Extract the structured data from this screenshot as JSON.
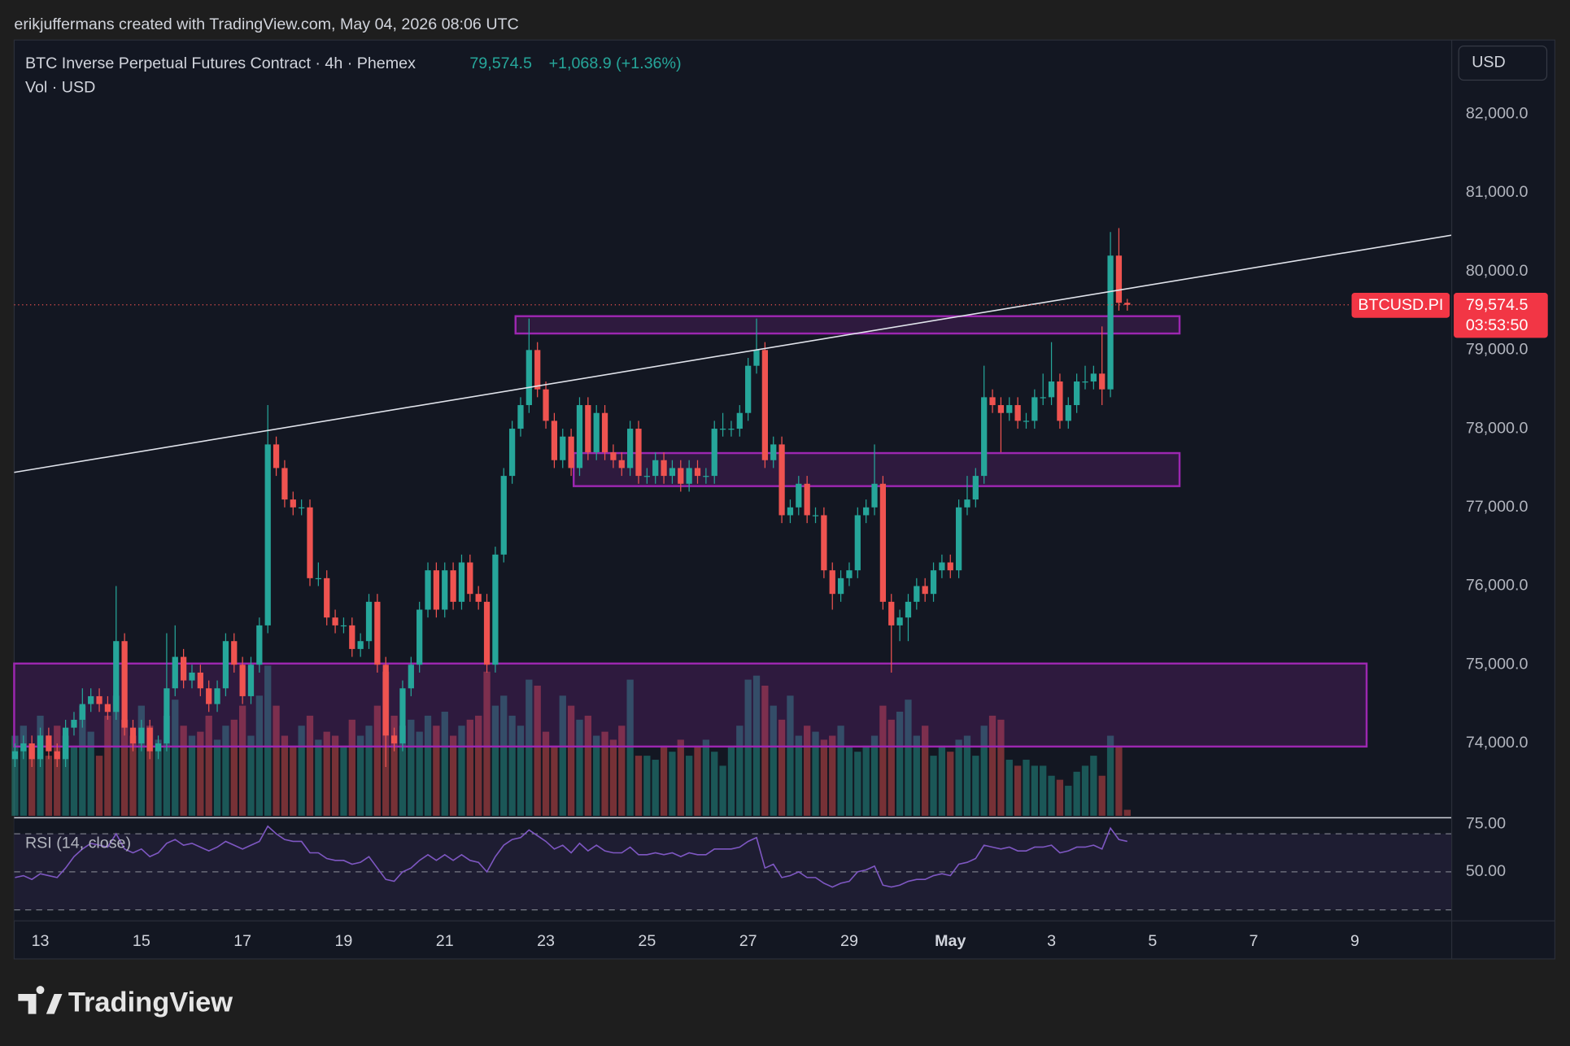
{
  "chart_data": {
    "type": "candlestick",
    "credit": "erikjuffermans created with TradingView.com, May 04, 2026 08:06 UTC",
    "title": "BTC Inverse Perpetual Futures Contract · 4h · Phemex",
    "last_price": {
      "value": 79574.5,
      "label": "79,574.5"
    },
    "change": "+1,068.9 (+1.36%)",
    "volume_label": "Vol · USD",
    "currency": "USD",
    "symbol_tag": "BTCUSD.PI",
    "countdown": "03:53:50",
    "rsi_label": "RSI (14, close)",
    "brand": "TradingView",
    "up_color": "#26a69a",
    "down_color": "#ef5350",
    "grid": true,
    "xlim": [
      -0.1,
      170.5
    ],
    "xticks": [
      {
        "value": 3,
        "label": "13"
      },
      {
        "value": 15,
        "label": "15"
      },
      {
        "value": 27,
        "label": "17"
      },
      {
        "value": 39,
        "label": "19"
      },
      {
        "value": 51,
        "label": "21"
      },
      {
        "value": 63,
        "label": "23"
      },
      {
        "value": 75,
        "label": "25"
      },
      {
        "value": 87,
        "label": "27"
      },
      {
        "value": 99,
        "label": "29"
      },
      {
        "value": 111,
        "label": "May"
      },
      {
        "value": 123,
        "label": "3"
      },
      {
        "value": 135,
        "label": "5"
      },
      {
        "value": 147,
        "label": "7"
      },
      {
        "value": 159,
        "label": "9"
      }
    ],
    "ylim": [
      73080,
      82940
    ],
    "yticks": [
      {
        "value": 74000,
        "label": "74,000.0"
      },
      {
        "value": 75000,
        "label": "75,000.0"
      },
      {
        "value": 76000,
        "label": "76,000.0"
      },
      {
        "value": 77000,
        "label": "77,000.0"
      },
      {
        "value": 78000,
        "label": "78,000.0"
      },
      {
        "value": 79000,
        "label": "79,000.0"
      },
      {
        "value": 80000,
        "label": "80,000.0"
      },
      {
        "value": 81000,
        "label": "81,000.0"
      },
      {
        "value": 82000,
        "label": "82,000.0"
      }
    ],
    "ohlc": [
      [
        73800,
        74000,
        73700,
        73900
      ],
      [
        73900,
        74100,
        73800,
        74000
      ],
      [
        74000,
        74100,
        73700,
        73800
      ],
      [
        73800,
        74200,
        73700,
        74100
      ],
      [
        74100,
        74200,
        73800,
        73900
      ],
      [
        73900,
        74000,
        73700,
        73800
      ],
      [
        73800,
        74300,
        73700,
        74200
      ],
      [
        74200,
        74400,
        74100,
        74300
      ],
      [
        74300,
        74700,
        74200,
        74500
      ],
      [
        74500,
        74700,
        74400,
        74600
      ],
      [
        74600,
        74700,
        74400,
        74500
      ],
      [
        74500,
        74600,
        74300,
        74400
      ],
      [
        74400,
        76000,
        74300,
        75300
      ],
      [
        75300,
        75400,
        74100,
        74200
      ],
      [
        74200,
        74300,
        73900,
        74000
      ],
      [
        74000,
        74300,
        73900,
        74200
      ],
      [
        74200,
        74300,
        73800,
        73900
      ],
      [
        73900,
        74100,
        73800,
        74000
      ],
      [
        74000,
        75400,
        73900,
        74700
      ],
      [
        74700,
        75500,
        74600,
        75100
      ],
      [
        75100,
        75200,
        74700,
        74800
      ],
      [
        74800,
        75000,
        74700,
        74900
      ],
      [
        74900,
        75000,
        74600,
        74700
      ],
      [
        74700,
        74800,
        74400,
        74500
      ],
      [
        74500,
        74800,
        74400,
        74700
      ],
      [
        74700,
        75400,
        74600,
        75300
      ],
      [
        75300,
        75400,
        74900,
        75000
      ],
      [
        75000,
        75100,
        74500,
        74600
      ],
      [
        74600,
        75100,
        74500,
        75000
      ],
      [
        75000,
        75600,
        74900,
        75500
      ],
      [
        75500,
        78300,
        75400,
        77800
      ],
      [
        77800,
        77900,
        77400,
        77500
      ],
      [
        77500,
        77600,
        77000,
        77100
      ],
      [
        77100,
        77200,
        76900,
        77000
      ],
      [
        77000,
        77100,
        76900,
        77000
      ],
      [
        77000,
        77100,
        76000,
        76100
      ],
      [
        76100,
        76300,
        76000,
        76100
      ],
      [
        76100,
        76200,
        75500,
        75600
      ],
      [
        75600,
        75700,
        75400,
        75500
      ],
      [
        75500,
        75600,
        75400,
        75500
      ],
      [
        75500,
        75600,
        75100,
        75200
      ],
      [
        75200,
        75400,
        75100,
        75300
      ],
      [
        75300,
        75900,
        75200,
        75800
      ],
      [
        75800,
        75900,
        74900,
        75000
      ],
      [
        75000,
        75100,
        73700,
        74100
      ],
      [
        74100,
        74200,
        73900,
        74000
      ],
      [
        74000,
        74800,
        73900,
        74700
      ],
      [
        74700,
        75100,
        74600,
        75000
      ],
      [
        75000,
        75800,
        74900,
        75700
      ],
      [
        75700,
        76300,
        75600,
        76200
      ],
      [
        76200,
        76300,
        75600,
        75700
      ],
      [
        75700,
        76300,
        75600,
        76200
      ],
      [
        76200,
        76300,
        75700,
        75800
      ],
      [
        75800,
        76400,
        75700,
        76300
      ],
      [
        76300,
        76400,
        75800,
        75900
      ],
      [
        75900,
        76000,
        75700,
        75800
      ],
      [
        75800,
        75900,
        74900,
        75000
      ],
      [
        75000,
        76500,
        74900,
        76400
      ],
      [
        76400,
        77500,
        76300,
        77400
      ],
      [
        77400,
        78100,
        77300,
        78000
      ],
      [
        78000,
        78400,
        77900,
        78300
      ],
      [
        78300,
        79400,
        78200,
        79000
      ],
      [
        79000,
        79100,
        78400,
        78500
      ],
      [
        78500,
        78600,
        78000,
        78100
      ],
      [
        78100,
        78200,
        77500,
        77600
      ],
      [
        77600,
        78000,
        77500,
        77900
      ],
      [
        77900,
        78000,
        77400,
        77500
      ],
      [
        77500,
        78400,
        77400,
        78300
      ],
      [
        78300,
        78400,
        77600,
        77700
      ],
      [
        77700,
        78300,
        77600,
        78200
      ],
      [
        78200,
        78300,
        77600,
        77700
      ],
      [
        77700,
        77800,
        77500,
        77600
      ],
      [
        77600,
        77700,
        77400,
        77500
      ],
      [
        77500,
        78100,
        77400,
        78000
      ],
      [
        78000,
        78100,
        77300,
        77400
      ],
      [
        77400,
        77500,
        77300,
        77400
      ],
      [
        77400,
        77700,
        77300,
        77600
      ],
      [
        77600,
        77700,
        77300,
        77400
      ],
      [
        77400,
        77600,
        77300,
        77500
      ],
      [
        77500,
        77600,
        77200,
        77300
      ],
      [
        77300,
        77600,
        77200,
        77500
      ],
      [
        77500,
        77600,
        77300,
        77400
      ],
      [
        77400,
        77500,
        77300,
        77400
      ],
      [
        77400,
        78100,
        77300,
        78000
      ],
      [
        78000,
        78200,
        77900,
        78000
      ],
      [
        78000,
        78100,
        77900,
        78000
      ],
      [
        78000,
        78300,
        77900,
        78200
      ],
      [
        78200,
        78900,
        78100,
        78800
      ],
      [
        78800,
        79400,
        78700,
        79000
      ],
      [
        79000,
        79100,
        77500,
        77600
      ],
      [
        77600,
        77900,
        77500,
        77800
      ],
      [
        77800,
        77900,
        76800,
        76900
      ],
      [
        76900,
        77100,
        76800,
        77000
      ],
      [
        77000,
        77400,
        76900,
        77300
      ],
      [
        77300,
        77400,
        76800,
        76900
      ],
      [
        76900,
        77000,
        76800,
        76900
      ],
      [
        76900,
        77000,
        76100,
        76200
      ],
      [
        76200,
        76300,
        75700,
        75900
      ],
      [
        75900,
        76200,
        75800,
        76100
      ],
      [
        76100,
        76300,
        76000,
        76200
      ],
      [
        76200,
        77000,
        76100,
        76900
      ],
      [
        76900,
        77100,
        76800,
        77000
      ],
      [
        77000,
        77800,
        76900,
        77300
      ],
      [
        77300,
        77400,
        75700,
        75800
      ],
      [
        75800,
        75900,
        74900,
        75500
      ],
      [
        75500,
        75700,
        75300,
        75600
      ],
      [
        75600,
        75900,
        75300,
        75800
      ],
      [
        75800,
        76100,
        75700,
        76000
      ],
      [
        76000,
        76100,
        75800,
        75900
      ],
      [
        75900,
        76300,
        75800,
        76200
      ],
      [
        76200,
        76400,
        76100,
        76300
      ],
      [
        76300,
        76400,
        76100,
        76200
      ],
      [
        76200,
        77100,
        76100,
        77000
      ],
      [
        77000,
        77400,
        76900,
        77100
      ],
      [
        77100,
        77500,
        77000,
        77400
      ],
      [
        77400,
        78800,
        77300,
        78400
      ],
      [
        78400,
        78500,
        78200,
        78300
      ],
      [
        78300,
        78400,
        77700,
        78200
      ],
      [
        78200,
        78400,
        78100,
        78300
      ],
      [
        78300,
        78400,
        78000,
        78100
      ],
      [
        78100,
        78200,
        78000,
        78100
      ],
      [
        78100,
        78500,
        78000,
        78400
      ],
      [
        78400,
        78700,
        78300,
        78400
      ],
      [
        78400,
        79100,
        78300,
        78600
      ],
      [
        78600,
        78700,
        78000,
        78100
      ],
      [
        78100,
        78400,
        78000,
        78300
      ],
      [
        78300,
        78700,
        78200,
        78600
      ],
      [
        78600,
        78800,
        78500,
        78600
      ],
      [
        78600,
        78800,
        78500,
        78700
      ],
      [
        78700,
        79300,
        78300,
        78500
      ],
      [
        78500,
        80500,
        78400,
        80200
      ],
      [
        80200,
        80550,
        79500,
        79600
      ],
      [
        79600,
        79650,
        79500,
        79574.5
      ]
    ],
    "volume": [
      40,
      45,
      35,
      50,
      30,
      45,
      40,
      35,
      55,
      42,
      30,
      50,
      60,
      48,
      40,
      55,
      45,
      38,
      50,
      58,
      45,
      40,
      42,
      50,
      38,
      45,
      48,
      55,
      40,
      60,
      75,
      55,
      40,
      35,
      45,
      50,
      38,
      42,
      40,
      35,
      48,
      40,
      45,
      55,
      72,
      50,
      45,
      48,
      42,
      50,
      45,
      52,
      40,
      45,
      48,
      50,
      72,
      55,
      60,
      50,
      45,
      68,
      65,
      42,
      35,
      60,
      55,
      48,
      50,
      40,
      42,
      38,
      45,
      68,
      30,
      30,
      28,
      35,
      32,
      38,
      30,
      35,
      38,
      32,
      25,
      35,
      45,
      68,
      70,
      65,
      55,
      48,
      60,
      40,
      45,
      42,
      38,
      40,
      45,
      35,
      32,
      35,
      40,
      55,
      48,
      52,
      58,
      40,
      45,
      30,
      35,
      32,
      38,
      40,
      30,
      45,
      50,
      48,
      28,
      25,
      28,
      25,
      25,
      20,
      18,
      15,
      22,
      25,
      30,
      20,
      40,
      35,
      3
    ],
    "volume_ylim": [
      0,
      100
    ],
    "rsi": [
      47,
      48,
      46,
      49,
      48,
      47,
      52,
      58,
      62,
      65,
      64,
      63,
      70,
      62,
      60,
      62,
      58,
      60,
      65,
      67,
      64,
      65,
      63,
      61,
      63,
      66,
      64,
      62,
      64,
      66,
      74,
      70,
      67,
      66,
      66,
      60,
      60,
      57,
      56,
      56,
      54,
      55,
      58,
      52,
      46,
      45,
      50,
      52,
      56,
      59,
      56,
      59,
      56,
      59,
      56,
      55,
      50,
      58,
      64,
      67,
      68,
      72,
      69,
      66,
      62,
      64,
      60,
      65,
      61,
      64,
      61,
      60,
      60,
      63,
      59,
      59,
      60,
      59,
      60,
      58,
      60,
      59,
      59,
      62,
      62,
      62,
      63,
      66,
      68,
      52,
      54,
      47,
      48,
      50,
      47,
      47,
      44,
      42,
      44,
      45,
      50,
      51,
      53,
      43,
      42,
      43,
      45,
      46,
      46,
      48,
      49,
      48,
      54,
      55,
      57,
      64,
      63,
      62,
      63,
      61,
      61,
      63,
      63,
      64,
      60,
      61,
      63,
      63,
      64,
      62,
      73,
      67,
      66
    ],
    "rsi_color": "#7e57c2",
    "rsi_ylim": [
      24.2,
      77.9
    ],
    "rsi_yticks": [
      {
        "value": 75,
        "label": "75.00"
      },
      {
        "value": 50,
        "label": "50.00"
      }
    ],
    "rsi_levels": [
      70,
      50,
      30
    ],
    "trendline": {
      "x": [
        -0.1,
        170.5
      ],
      "y": [
        77445,
        80460
      ]
    },
    "zones": [
      {
        "x": [
          59.4,
          138.2
        ],
        "y": [
          79430,
          79210
        ]
      },
      {
        "x": [
          66.3,
          138.2
        ],
        "y": [
          77690,
          77270
        ]
      },
      {
        "x": [
          -0.1,
          160.4
        ],
        "y": [
          75015,
          73960
        ]
      }
    ]
  }
}
